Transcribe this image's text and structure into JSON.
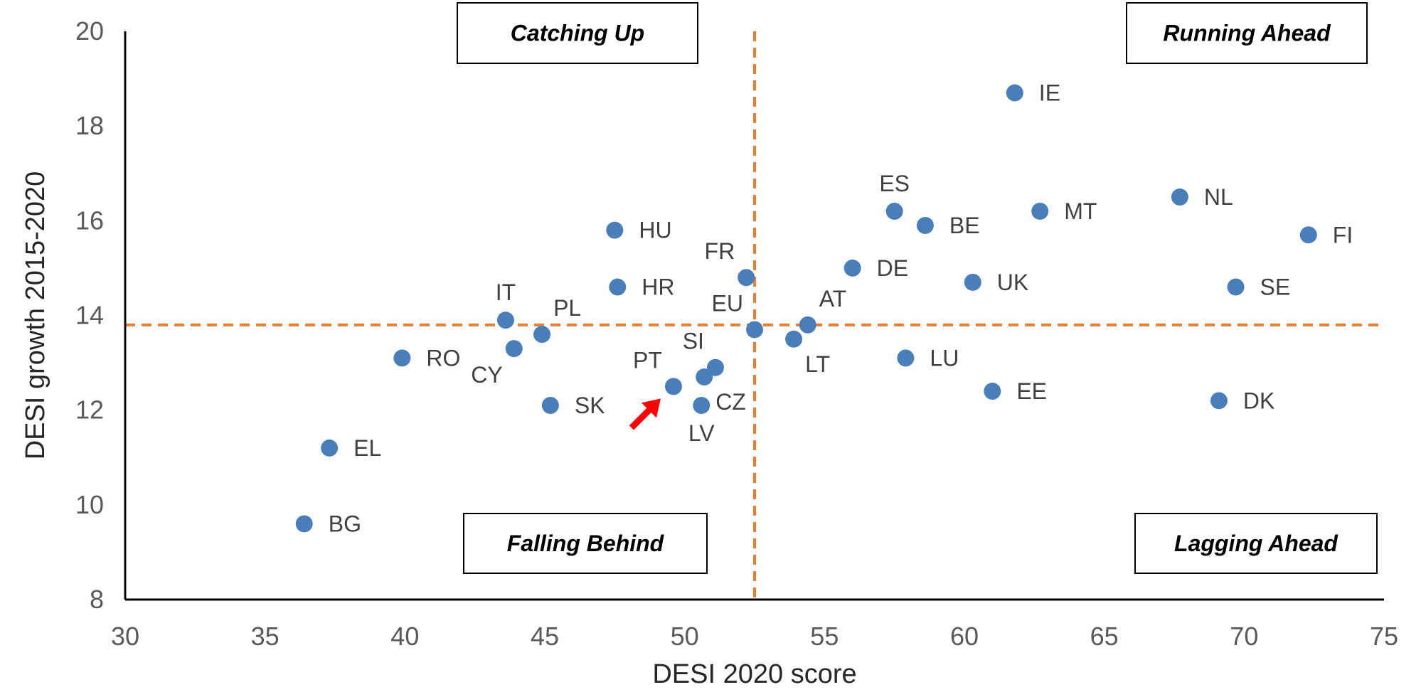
{
  "chart_data": {
    "type": "scatter",
    "xlabel": "DESI 2020 score",
    "ylabel": "DESI growth 2015-2020",
    "xlim": [
      30,
      75
    ],
    "ylim": [
      8,
      20
    ],
    "x_ticks": [
      "30",
      "35",
      "40",
      "45",
      "50",
      "55",
      "60",
      "65",
      "70",
      "75"
    ],
    "y_ticks": [
      "8",
      "10",
      "12",
      "14",
      "16",
      "18",
      "20"
    ],
    "grid": false,
    "point_color": "#4a7ebb",
    "reference_lines": {
      "x": 52.5,
      "y": 13.8,
      "color": "#ed7d31",
      "style": "dashed"
    },
    "quadrants": {
      "top_left": "Catching Up",
      "top_right": "Running Ahead",
      "bottom_left": "Falling Behind",
      "bottom_right": "Lagging Ahead"
    },
    "highlight": {
      "label": "PT",
      "marker": "red-arrow",
      "color": "#ff0000"
    },
    "points": [
      {
        "label": "IE",
        "x": 61.8,
        "y": 18.7,
        "pos": "right"
      },
      {
        "label": "ES",
        "x": 57.5,
        "y": 16.2,
        "pos": "above"
      },
      {
        "label": "BE",
        "x": 58.6,
        "y": 15.9,
        "pos": "right"
      },
      {
        "label": "MT",
        "x": 62.7,
        "y": 16.2,
        "pos": "right"
      },
      {
        "label": "NL",
        "x": 67.7,
        "y": 16.5,
        "pos": "right"
      },
      {
        "label": "FI",
        "x": 72.3,
        "y": 15.7,
        "pos": "right"
      },
      {
        "label": "HU",
        "x": 47.5,
        "y": 15.8,
        "pos": "right"
      },
      {
        "label": "FR",
        "x": 52.2,
        "y": 14.8,
        "pos": "above-left"
      },
      {
        "label": "DE",
        "x": 56.0,
        "y": 15.0,
        "pos": "right"
      },
      {
        "label": "UK",
        "x": 60.3,
        "y": 14.7,
        "pos": "right"
      },
      {
        "label": "SE",
        "x": 69.7,
        "y": 14.6,
        "pos": "right"
      },
      {
        "label": "HR",
        "x": 47.6,
        "y": 14.6,
        "pos": "right"
      },
      {
        "label": "IT",
        "x": 43.6,
        "y": 13.9,
        "pos": "above"
      },
      {
        "label": "PL",
        "x": 44.9,
        "y": 13.6,
        "pos": "above-right"
      },
      {
        "label": "EU",
        "x": 52.5,
        "y": 13.7,
        "pos": "above-left"
      },
      {
        "label": "AT",
        "x": 54.4,
        "y": 13.8,
        "pos": "above-right"
      },
      {
        "label": "LT",
        "x": 53.9,
        "y": 13.5,
        "pos": "below-right"
      },
      {
        "label": "CY",
        "x": 43.9,
        "y": 13.3,
        "pos": "below-left"
      },
      {
        "label": "RO",
        "x": 39.9,
        "y": 13.1,
        "pos": "right"
      },
      {
        "label": "LU",
        "x": 57.9,
        "y": 13.1,
        "pos": "right"
      },
      {
        "label": "SI",
        "x": 51.1,
        "y": 12.9,
        "pos": "above-left"
      },
      {
        "label": "CZ",
        "x": 50.7,
        "y": 12.7,
        "pos": "below-right"
      },
      {
        "label": "PT",
        "x": 49.6,
        "y": 12.5,
        "pos": "above-left"
      },
      {
        "label": "EE",
        "x": 61.0,
        "y": 12.4,
        "pos": "right"
      },
      {
        "label": "SK",
        "x": 45.2,
        "y": 12.1,
        "pos": "right"
      },
      {
        "label": "LV",
        "x": 50.6,
        "y": 12.1,
        "pos": "below"
      },
      {
        "label": "DK",
        "x": 69.1,
        "y": 12.2,
        "pos": "right"
      },
      {
        "label": "EL",
        "x": 37.3,
        "y": 11.2,
        "pos": "right"
      },
      {
        "label": "BG",
        "x": 36.4,
        "y": 9.6,
        "pos": "right"
      }
    ]
  }
}
